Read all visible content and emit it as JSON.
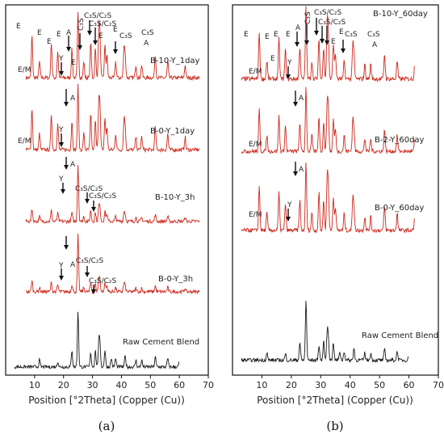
{
  "chart_data": [
    {
      "panel": "(a)",
      "type": "line",
      "xlabel": "Position [°2Theta] (Copper (Cu))",
      "xlim": [
        0,
        70
      ],
      "x_ticks": [
        "10",
        "20",
        "30",
        "40",
        "50",
        "60",
        "70"
      ],
      "grid": false,
      "series": [
        {
          "name": "B-10-Y_1day",
          "annotations": [
            "E",
            "E",
            "E",
            "E",
            "E",
            "A",
            "C3S",
            "C3S/C2S",
            "C3S/C2S",
            "E",
            "C3S",
            "C3S",
            "E",
            "E/M",
            "Y",
            "E",
            "A"
          ]
        },
        {
          "name": "B-0-Y_1day",
          "annotations": [
            "A",
            "Y",
            "E/M"
          ]
        },
        {
          "name": "B-10-Y_3h",
          "annotations": [
            "A",
            "Y",
            "C3S/C2S",
            "C3S/C2S"
          ]
        },
        {
          "name": "B-0-Y_3h",
          "annotations": [
            "A",
            "Y",
            "C3S/C2S",
            "C3S/C2S"
          ]
        },
        {
          "name": "Raw Cement Blend",
          "annotations": []
        }
      ]
    },
    {
      "panel": "(b)",
      "type": "line",
      "xlabel": "Position [°2Theta] (Copper (Cu))",
      "xlim": [
        0,
        70
      ],
      "x_ticks": [
        "10",
        "20",
        "30",
        "40",
        "50",
        "60",
        "70"
      ],
      "grid": false,
      "series": [
        {
          "name": "B-10-Y_60day",
          "annotations": [
            "E",
            "E",
            "E",
            "E",
            "A",
            "C3S",
            "C3S/C2S",
            "C3S/C2S",
            "E",
            "E",
            "C3S",
            "C3S",
            "A",
            "E/M",
            "E",
            "Y"
          ]
        },
        {
          "name": "B-2-Y_60day",
          "annotations": [
            "A",
            "E/M"
          ]
        },
        {
          "name": "B-0-Y_60day",
          "annotations": [
            "A",
            "Y",
            "E/M"
          ]
        },
        {
          "name": "Raw Cement Blend",
          "annotations": []
        }
      ]
    }
  ],
  "colors": {
    "sample_trace": "#cc2a1e",
    "sample_trace_dark": "#4a3a12",
    "raw_trace": "#1a1a1a",
    "frame": "#111111"
  },
  "labels": {
    "a": {
      "s1_name": "B-10-Y_1day",
      "s2_name": "B-0-Y_1day",
      "s3_name": "B-10-Y_3h",
      "s4_name": "B-0-Y_3h",
      "raw_name": "Raw Cement Blend",
      "E": "E",
      "A": "A",
      "Y": "Y",
      "EM": "E/M",
      "C3S": "C₃S",
      "C3SC2S": "C₃S/C₂S"
    },
    "b": {
      "s1_name": "B-10-Y_60day",
      "s2_name": "B-2-Y_60day",
      "s3_name": "B-0-Y_60day",
      "raw_name": "Raw Cement Blend",
      "E": "E",
      "A": "A",
      "Y": "Y",
      "EM": "E/M",
      "C3S": "C₃S",
      "C3SC2S": "C₃S/C₂S"
    },
    "xlabel": "Position [°2Theta] (Copper (Cu))",
    "ticks": [
      "10",
      "20",
      "30",
      "40",
      "50",
      "60",
      "70"
    ],
    "panel_a": "(a)",
    "panel_b": "(b)"
  }
}
